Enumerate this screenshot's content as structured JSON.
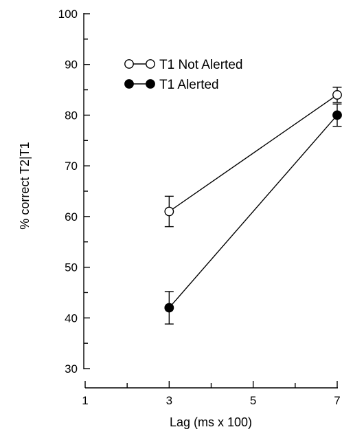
{
  "chart_data": {
    "type": "line",
    "title": "",
    "xlabel": "Lag (ms x 100)",
    "ylabel": "% correct T2|T1",
    "xlim": [
      1,
      7
    ],
    "ylim": [
      30,
      100
    ],
    "x_ticks": [
      "1",
      "3",
      "5",
      "7"
    ],
    "y_ticks": [
      "30",
      "40",
      "50",
      "60",
      "70",
      "80",
      "90",
      "100"
    ],
    "grid": false,
    "legend_position": "top-left",
    "series": [
      {
        "name": "T1 Not Alerted",
        "marker": "open-circle",
        "color": "#000000",
        "x": [
          3,
          7
        ],
        "y": [
          61,
          84
        ],
        "error": [
          3,
          1.5
        ]
      },
      {
        "name": "T1 Alerted",
        "marker": "filled-circle",
        "color": "#000000",
        "x": [
          3,
          7
        ],
        "y": [
          42,
          80
        ],
        "error": [
          3.2,
          2.2
        ]
      }
    ]
  }
}
